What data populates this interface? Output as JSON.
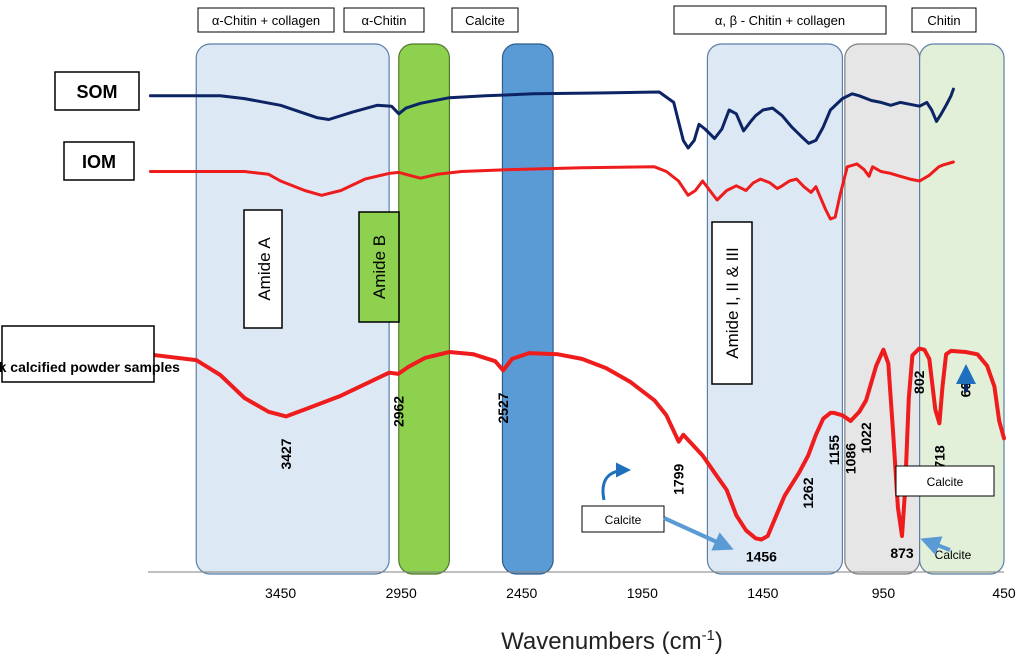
{
  "chart_data": {
    "type": "line",
    "xlabel": "Wavenumbers (cm-1)",
    "xlabel_parts": {
      "main": "Wavenumbers (cm",
      "sup": "-1",
      "close": ")"
    },
    "x_reversed": true,
    "xlim": [
      4000,
      450
    ],
    "x_ticks": [
      3450,
      2950,
      2450,
      1950,
      1450,
      950,
      450
    ],
    "series": [
      {
        "name": "SOM",
        "color": "#0d2464",
        "points": [
          [
            3990,
            0.05
          ],
          [
            3700,
            0.05
          ],
          [
            3600,
            0.08
          ],
          [
            3450,
            0.15
          ],
          [
            3300,
            0.28
          ],
          [
            3250,
            0.3
          ],
          [
            3150,
            0.22
          ],
          [
            3050,
            0.15
          ],
          [
            2990,
            0.16
          ],
          [
            2960,
            0.24
          ],
          [
            2930,
            0.18
          ],
          [
            2870,
            0.13
          ],
          [
            2750,
            0.07
          ],
          [
            2600,
            0.05
          ],
          [
            2400,
            0.03
          ],
          [
            2100,
            0.02
          ],
          [
            1880,
            0.01
          ],
          [
            1820,
            0.12
          ],
          [
            1780,
            0.52
          ],
          [
            1760,
            0.6
          ],
          [
            1735,
            0.52
          ],
          [
            1715,
            0.35
          ],
          [
            1690,
            0.4
          ],
          [
            1650,
            0.5
          ],
          [
            1620,
            0.4
          ],
          [
            1590,
            0.2
          ],
          [
            1560,
            0.24
          ],
          [
            1530,
            0.42
          ],
          [
            1500,
            0.32
          ],
          [
            1480,
            0.26
          ],
          [
            1450,
            0.2
          ],
          [
            1410,
            0.18
          ],
          [
            1370,
            0.26
          ],
          [
            1330,
            0.38
          ],
          [
            1290,
            0.48
          ],
          [
            1260,
            0.55
          ],
          [
            1230,
            0.52
          ],
          [
            1200,
            0.38
          ],
          [
            1170,
            0.2
          ],
          [
            1120,
            0.08
          ],
          [
            1080,
            0.03
          ],
          [
            1050,
            0.05
          ],
          [
            1000,
            0.1
          ],
          [
            960,
            0.12
          ],
          [
            920,
            0.15
          ],
          [
            880,
            0.12
          ],
          [
            840,
            0.14
          ],
          [
            800,
            0.16
          ],
          [
            770,
            0.12
          ],
          [
            750,
            0.2
          ],
          [
            730,
            0.32
          ],
          [
            710,
            0.24
          ],
          [
            690,
            0.15
          ],
          [
            670,
            0.05
          ],
          [
            660,
            -0.02
          ]
        ]
      },
      {
        "name": "IOM",
        "color": "#ee1c1c",
        "points": [
          [
            3990,
            0.1
          ],
          [
            3600,
            0.1
          ],
          [
            3500,
            0.13
          ],
          [
            3450,
            0.2
          ],
          [
            3350,
            0.3
          ],
          [
            3280,
            0.35
          ],
          [
            3200,
            0.3
          ],
          [
            3100,
            0.18
          ],
          [
            3000,
            0.12
          ],
          [
            2960,
            0.11
          ],
          [
            2900,
            0.15
          ],
          [
            2870,
            0.17
          ],
          [
            2800,
            0.13
          ],
          [
            2700,
            0.1
          ],
          [
            2500,
            0.08
          ],
          [
            2200,
            0.06
          ],
          [
            1900,
            0.05
          ],
          [
            1850,
            0.1
          ],
          [
            1800,
            0.2
          ],
          [
            1760,
            0.35
          ],
          [
            1730,
            0.3
          ],
          [
            1700,
            0.2
          ],
          [
            1670,
            0.3
          ],
          [
            1640,
            0.4
          ],
          [
            1600,
            0.3
          ],
          [
            1560,
            0.25
          ],
          [
            1520,
            0.3
          ],
          [
            1490,
            0.22
          ],
          [
            1460,
            0.18
          ],
          [
            1420,
            0.22
          ],
          [
            1390,
            0.28
          ],
          [
            1370,
            0.25
          ],
          [
            1340,
            0.2
          ],
          [
            1310,
            0.18
          ],
          [
            1280,
            0.26
          ],
          [
            1250,
            0.32
          ],
          [
            1230,
            0.26
          ],
          [
            1210,
            0.38
          ],
          [
            1190,
            0.5
          ],
          [
            1170,
            0.6
          ],
          [
            1150,
            0.58
          ],
          [
            1130,
            0.35
          ],
          [
            1100,
            0.05
          ],
          [
            1060,
            0.02
          ],
          [
            1030,
            0.08
          ],
          [
            1010,
            0.15
          ],
          [
            995,
            0.05
          ],
          [
            960,
            0.1
          ],
          [
            920,
            0.12
          ],
          [
            880,
            0.15
          ],
          [
            840,
            0.18
          ],
          [
            800,
            0.2
          ],
          [
            760,
            0.14
          ],
          [
            720,
            0.05
          ],
          [
            700,
            0.03
          ],
          [
            660,
            0.0
          ]
        ]
      },
      {
        "name": "Bulk calcified powder samples",
        "color": "#ee1c1c",
        "points": [
          [
            4000,
            0.02
          ],
          [
            3800,
            0.07
          ],
          [
            3700,
            0.2
          ],
          [
            3600,
            0.4
          ],
          [
            3500,
            0.52
          ],
          [
            3427,
            0.56
          ],
          [
            3350,
            0.5
          ],
          [
            3200,
            0.38
          ],
          [
            3100,
            0.28
          ],
          [
            3000,
            0.18
          ],
          [
            2962,
            0.19
          ],
          [
            2920,
            0.13
          ],
          [
            2850,
            0.05
          ],
          [
            2750,
            0.0
          ],
          [
            2650,
            0.02
          ],
          [
            2560,
            0.08
          ],
          [
            2527,
            0.16
          ],
          [
            2490,
            0.06
          ],
          [
            2420,
            0.01
          ],
          [
            2300,
            0.02
          ],
          [
            2200,
            0.06
          ],
          [
            2100,
            0.14
          ],
          [
            2000,
            0.26
          ],
          [
            1900,
            0.42
          ],
          [
            1850,
            0.55
          ],
          [
            1799,
            0.78
          ],
          [
            1780,
            0.72
          ],
          [
            1700,
            0.9
          ],
          [
            1650,
            1.05
          ],
          [
            1600,
            1.2
          ],
          [
            1560,
            1.42
          ],
          [
            1520,
            1.55
          ],
          [
            1480,
            1.62
          ],
          [
            1456,
            1.63
          ],
          [
            1430,
            1.6
          ],
          [
            1400,
            1.45
          ],
          [
            1360,
            1.25
          ],
          [
            1300,
            1.05
          ],
          [
            1262,
            0.9
          ],
          [
            1230,
            0.72
          ],
          [
            1200,
            0.58
          ],
          [
            1170,
            0.53
          ],
          [
            1155,
            0.53
          ],
          [
            1120,
            0.55
          ],
          [
            1086,
            0.6
          ],
          [
            1050,
            0.52
          ],
          [
            1022,
            0.42
          ],
          [
            980,
            0.12
          ],
          [
            950,
            -0.02
          ],
          [
            930,
            0.1
          ],
          [
            910,
            0.7
          ],
          [
            890,
            1.35
          ],
          [
            873,
            1.6
          ],
          [
            860,
            1.2
          ],
          [
            845,
            0.4
          ],
          [
            830,
            0.03
          ],
          [
            802,
            -0.03
          ],
          [
            780,
            -0.02
          ],
          [
            760,
            0.06
          ],
          [
            735,
            0.5
          ],
          [
            718,
            0.62
          ],
          [
            705,
            0.3
          ],
          [
            690,
            0.02
          ],
          [
            670,
            -0.01
          ],
          [
            609,
            0.0
          ],
          [
            560,
            0.02
          ],
          [
            520,
            0.12
          ],
          [
            490,
            0.3
          ],
          [
            470,
            0.6
          ],
          [
            450,
            0.75
          ]
        ]
      }
    ],
    "shaded_bands": [
      {
        "name": "alpha-chitin-collagen",
        "header": "α-Chitin + collagen",
        "label": "Amide A",
        "fill": "#dde8f5",
        "stroke": "#5b7fa8",
        "range": [
          3800,
          3000
        ]
      },
      {
        "name": "alpha-chitin",
        "header": "α-Chitin",
        "label": "Amide B",
        "fill": "#8ed14f",
        "stroke": "#4f7a2c",
        "range": [
          2960,
          2750
        ]
      },
      {
        "name": "calcite",
        "header": "Calcite",
        "label": "",
        "fill": "#5b9bd5",
        "stroke": "#2e5c8e",
        "range": [
          2530,
          2320
        ]
      },
      {
        "name": "amide-i-ii-iii",
        "header": "α, β - Chitin + collagen",
        "label": "Amide I, II & III",
        "fill": "#dde8f5",
        "stroke": "#5b7fa8",
        "range": [
          1680,
          1120
        ]
      },
      {
        "name": "grey",
        "header": "",
        "label": "",
        "fill": "#e6e6e6",
        "stroke": "#7f7f7f",
        "range": [
          1110,
          800
        ]
      },
      {
        "name": "chitin",
        "header": "Chitin",
        "label": "",
        "fill": "#e2efd9",
        "stroke": "#5b7fa8",
        "range": [
          800,
          450
        ]
      }
    ],
    "peak_labels": [
      {
        "label": "3427",
        "x": 3427,
        "vertical": true
      },
      {
        "label": "2962",
        "x": 2962,
        "vertical": true
      },
      {
        "label": "2527",
        "x": 2527,
        "vertical": true
      },
      {
        "label": "1799",
        "x": 1799,
        "vertical": true
      },
      {
        "label": "1456",
        "x": 1456,
        "vertical": false
      },
      {
        "label": "1262",
        "x": 1262,
        "vertical": true
      },
      {
        "label": "1155",
        "x": 1155,
        "vertical": true
      },
      {
        "label": "1086",
        "x": 1086,
        "vertical": true
      },
      {
        "label": "1022",
        "x": 1022,
        "vertical": true
      },
      {
        "label": "873",
        "x": 873,
        "vertical": false
      },
      {
        "label": "802",
        "x": 802,
        "vertical": true
      },
      {
        "label": "718",
        "x": 718,
        "vertical": true
      },
      {
        "label": "609",
        "x": 609,
        "vertical": true
      }
    ],
    "annotations": {
      "calcite_box_1": "Calcite",
      "calcite_box_2": "Calcite",
      "calcite_note_873": "Calcite"
    },
    "arrow_color": "#5b9bd5",
    "grid": false
  }
}
